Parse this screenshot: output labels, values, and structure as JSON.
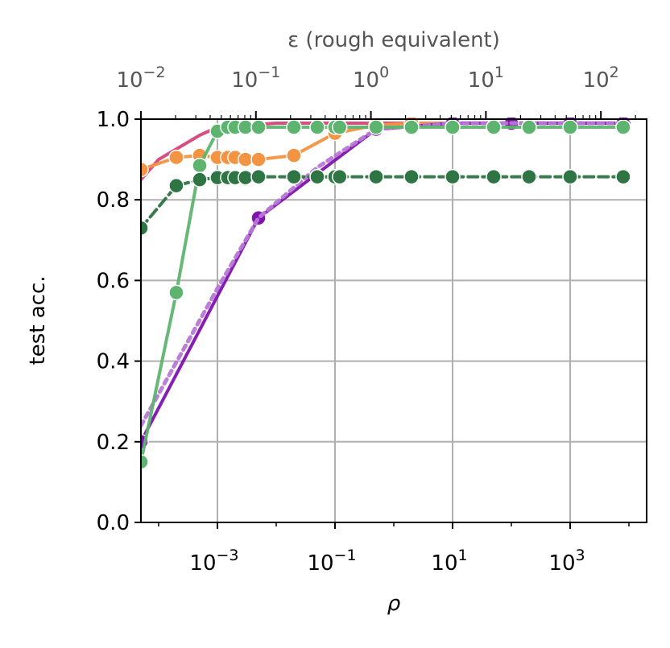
{
  "chart_data": {
    "type": "line",
    "x_scale": "log",
    "xlabel": "ρ",
    "ylabel": "test acc.",
    "top_xlabel": "ε (rough equivalent)",
    "xlim": [
      5e-05,
      20000
    ],
    "ylim": [
      0,
      1
    ],
    "top_xlim": [
      0.01,
      250
    ],
    "grid": true,
    "x_ticks": [
      {
        "value": 0.001,
        "base": "10",
        "exp": "−3"
      },
      {
        "value": 0.1,
        "base": "10",
        "exp": "−1"
      },
      {
        "value": 10,
        "base": "10",
        "exp": "1"
      },
      {
        "value": 1000,
        "base": "10",
        "exp": "3"
      }
    ],
    "top_x_ticks": [
      {
        "value": 0.01,
        "base": "10",
        "exp": "−2"
      },
      {
        "value": 0.1,
        "base": "10",
        "exp": "−1"
      },
      {
        "value": 1,
        "base": "10",
        "exp": "0"
      },
      {
        "value": 10,
        "base": "10",
        "exp": "1"
      },
      {
        "value": 100,
        "base": "10",
        "exp": "2"
      }
    ],
    "y_ticks": [
      "0.0",
      "0.2",
      "0.4",
      "0.6",
      "0.8",
      "1.0"
    ],
    "series": [
      {
        "color": "#d6457a",
        "dash": "",
        "markers": false,
        "x": [
          5e-05,
          0.0001,
          0.0005,
          0.001,
          0.01,
          0.1,
          1,
          10,
          100,
          1000,
          10000
        ],
        "y": [
          0.85,
          0.9,
          0.96,
          0.98,
          0.99,
          0.99,
          0.99,
          0.99,
          0.99,
          0.99,
          0.99
        ]
      },
      {
        "color": "#f29442",
        "dash": "",
        "markers": true,
        "x": [
          5e-05,
          0.0002,
          0.0005,
          0.001,
          0.0015,
          0.002,
          0.003,
          0.005,
          0.02,
          0.1,
          0.5,
          2,
          10,
          100,
          1000,
          8000
        ],
        "y": [
          0.875,
          0.905,
          0.91,
          0.905,
          0.905,
          0.905,
          0.9,
          0.9,
          0.91,
          0.965,
          0.985,
          0.99,
          0.99,
          0.99,
          0.99,
          0.99
        ]
      },
      {
        "color": "#7f13ad",
        "dash": "",
        "markers": true,
        "x": [
          5e-05,
          0.005,
          0.5,
          10,
          100,
          1000,
          8000
        ],
        "y": [
          0.2,
          0.755,
          0.975,
          0.99,
          0.99,
          0.99,
          0.99
        ]
      },
      {
        "color": "#b778d6",
        "dash": "6,6",
        "markers": false,
        "x": [
          5e-05,
          0.001,
          0.005,
          0.05,
          0.5,
          10,
          10000
        ],
        "y": [
          0.24,
          0.58,
          0.755,
          0.88,
          0.975,
          0.99,
          0.99
        ]
      },
      {
        "color": "#5db46e",
        "dash": "",
        "markers": true,
        "x": [
          5e-05,
          0.0002,
          0.0005,
          0.001,
          0.0015,
          0.002,
          0.003,
          0.005,
          0.02,
          0.05,
          0.1,
          0.12,
          0.5,
          2,
          10,
          50,
          200,
          1000,
          8000
        ],
        "y": [
          0.15,
          0.57,
          0.885,
          0.97,
          0.98,
          0.98,
          0.98,
          0.98,
          0.98,
          0.98,
          0.98,
          0.98,
          0.98,
          0.98,
          0.98,
          0.98,
          0.98,
          0.98,
          0.98
        ]
      },
      {
        "color": "#2f7443",
        "dash": "12,6",
        "markers": true,
        "x": [
          5e-05,
          0.0002,
          0.0005,
          0.001,
          0.0015,
          0.002,
          0.003,
          0.005,
          0.02,
          0.05,
          0.1,
          0.12,
          0.5,
          2,
          10,
          50,
          200,
          1000,
          8000
        ],
        "y": [
          0.73,
          0.835,
          0.85,
          0.855,
          0.855,
          0.855,
          0.855,
          0.857,
          0.857,
          0.857,
          0.857,
          0.857,
          0.857,
          0.857,
          0.857,
          0.857,
          0.857,
          0.857,
          0.857
        ]
      }
    ]
  }
}
